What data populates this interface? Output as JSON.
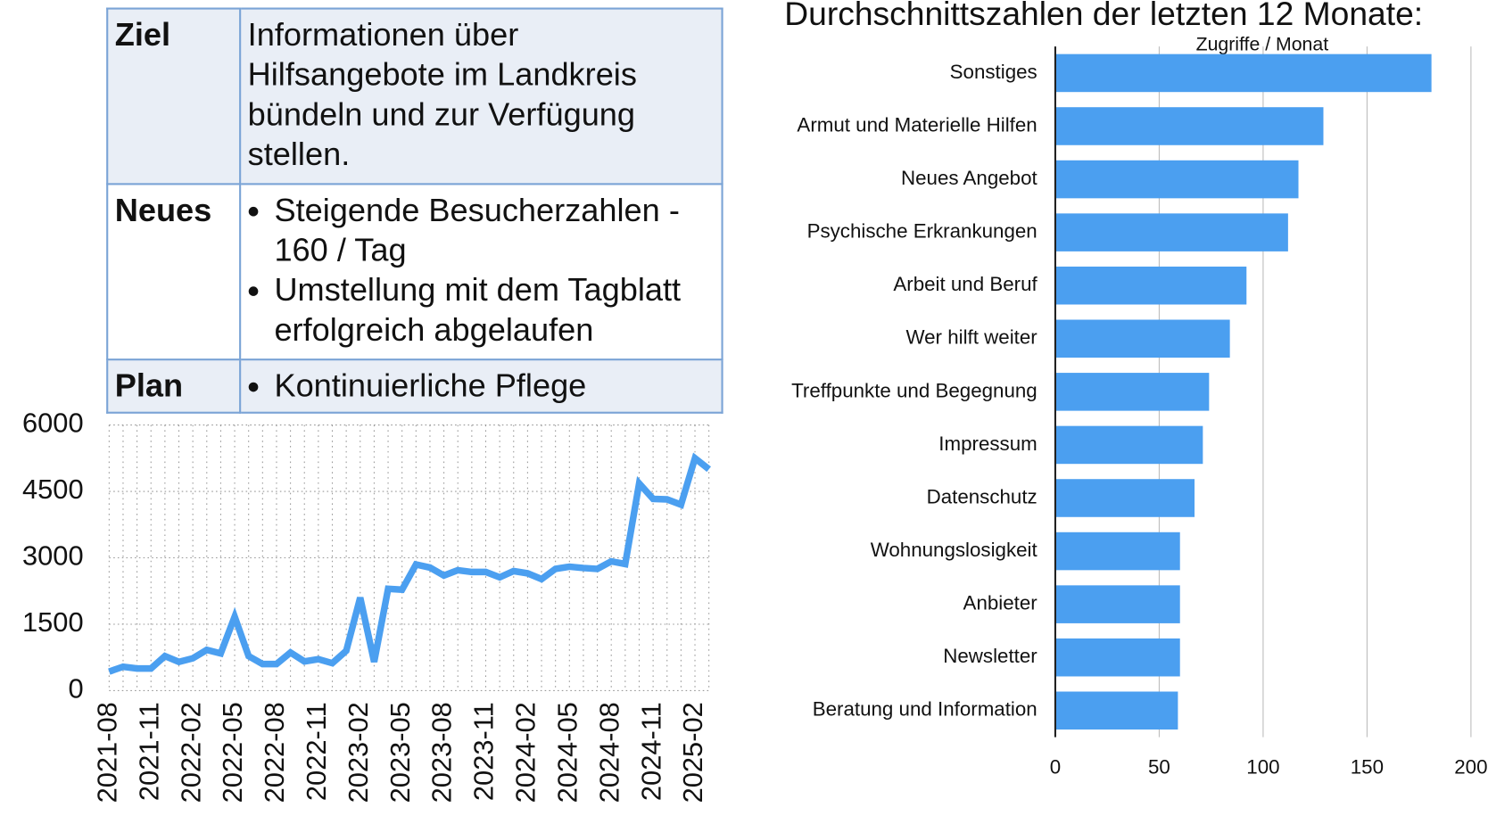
{
  "table": {
    "rows": [
      {
        "label": "Ziel",
        "text": "Informationen über Hilfsangebote im Landkreis bündeln und zur Verfügung stellen."
      },
      {
        "label": "Neues",
        "items": [
          "Steigende Besucherzahlen - 160 / Tag",
          "Umstellung mit dem Tagblatt erfolgreich abgelaufen"
        ]
      },
      {
        "label": "Plan",
        "items": [
          "Kontinuierliche Pflege"
        ]
      }
    ]
  },
  "chart_data": [
    {
      "type": "line",
      "categories": [
        "2021-08",
        null,
        null,
        "2021-11",
        null,
        null,
        "2022-02",
        null,
        null,
        "2022-05",
        null,
        null,
        "2022-08",
        null,
        null,
        "2022-11",
        null,
        null,
        "2023-02",
        null,
        null,
        "2023-05",
        null,
        null,
        "2023-08",
        null,
        null,
        "2023-11",
        null,
        null,
        "2024-02",
        null,
        null,
        "2024-05",
        null,
        null,
        "2024-08",
        null,
        null,
        "2024-11",
        null,
        null,
        "2025-02",
        null
      ],
      "series": [
        {
          "name": null,
          "color": "#4b9ff0",
          "values": [
            430,
            540,
            500,
            500,
            780,
            650,
            730,
            920,
            840,
            1670,
            780,
            600,
            600,
            860,
            660,
            710,
            620,
            900,
            2100,
            650,
            2300,
            2280,
            2850,
            2780,
            2600,
            2720,
            2680,
            2680,
            2560,
            2700,
            2650,
            2520,
            2750,
            2800,
            2770,
            2750,
            2920,
            2860,
            4680,
            4330,
            4320,
            4200,
            5250,
            5000
          ]
        }
      ],
      "ylim": [
        0,
        6000
      ],
      "yticks": [
        0,
        1500,
        3000,
        4500,
        6000
      ],
      "grid": true
    },
    {
      "type": "bar",
      "title": "Durchschnittszahlen der letzten 12 Monate:",
      "x_label": "Zugriffe / Monat",
      "categories": [
        "Sonstiges",
        "Armut und Materielle Hilfen",
        "Neues Angebot",
        "Psychische Erkrankungen",
        "Arbeit und Beruf",
        "Wer hilft weiter",
        "Treffpunkte und Begegnung",
        "Impressum",
        "Datenschutz",
        "Wohnungslosigkeit",
        "Anbieter",
        "Newsletter",
        "Beratung und Information"
      ],
      "values": [
        181,
        129,
        117,
        112,
        92,
        84,
        74,
        71,
        67,
        60,
        60,
        60,
        59
      ],
      "color": "#4b9ff0",
      "xlim": [
        0,
        200
      ],
      "xticks": [
        0,
        50,
        100,
        150,
        200
      ],
      "grid": true
    }
  ]
}
